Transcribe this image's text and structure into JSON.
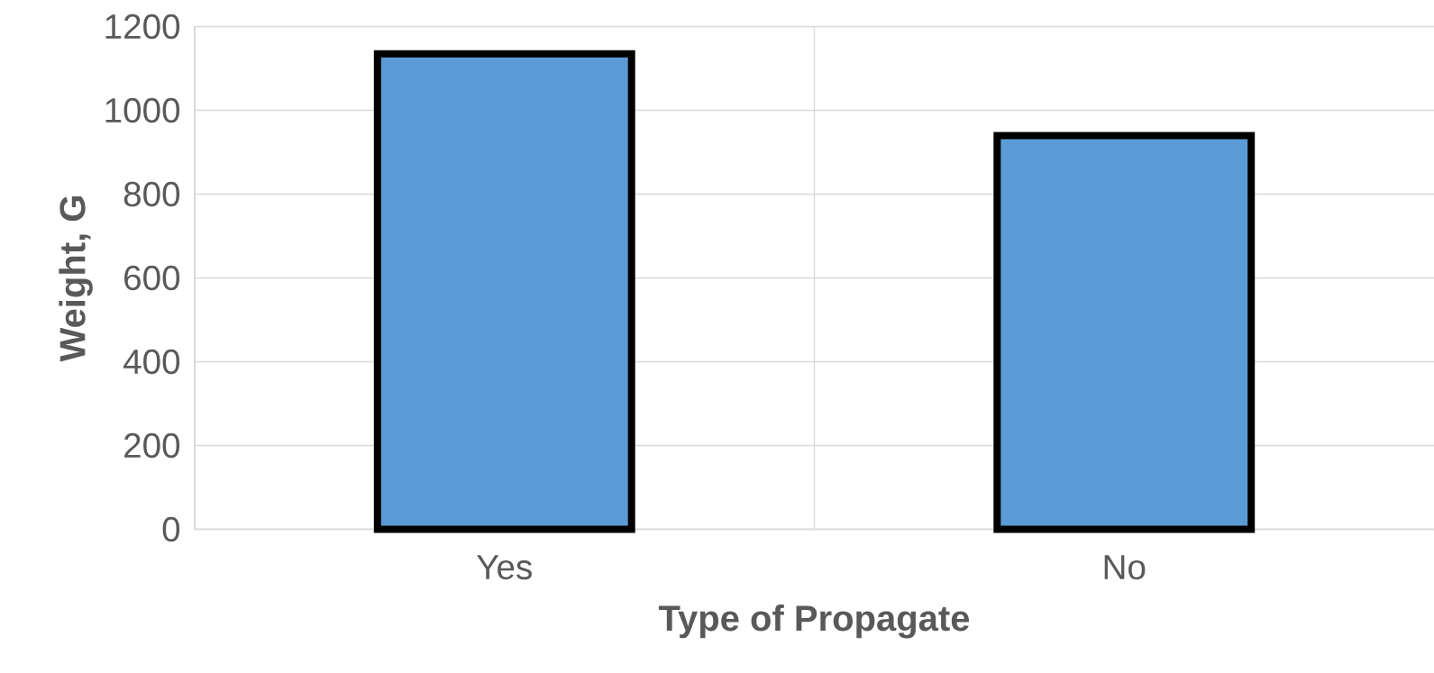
{
  "chart_data": {
    "type": "bar",
    "xlabel": "Type of Propagate",
    "ylabel": "Weight, G",
    "categories": [
      "Yes",
      "No"
    ],
    "values": [
      1135,
      940
    ],
    "color": "#5b9bd5",
    "ylim": [
      0,
      1200
    ],
    "yticks": [
      0,
      200,
      400,
      600,
      800,
      1000,
      1200
    ],
    "grid": true
  }
}
